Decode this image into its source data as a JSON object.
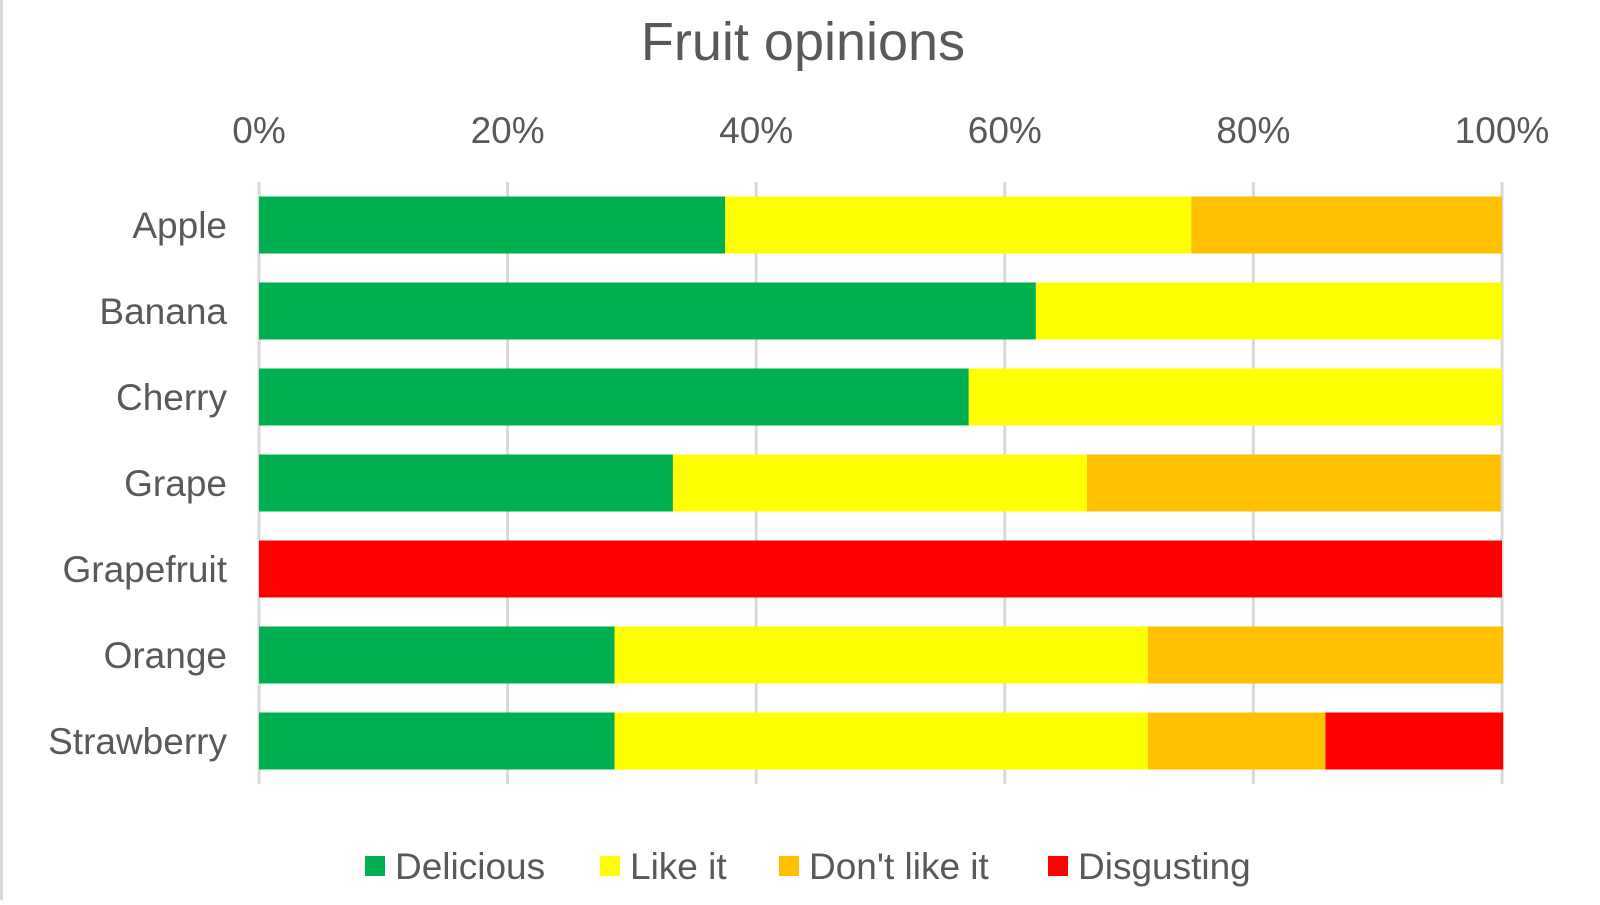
{
  "chart_data": {
    "type": "bar",
    "orientation": "horizontal",
    "stacked": "100%",
    "title": "Fruit opinions",
    "xlabel": "",
    "ylabel": "",
    "xlim": [
      0,
      100
    ],
    "x_ticks": [
      "0%",
      "20%",
      "40%",
      "60%",
      "80%",
      "100%"
    ],
    "x_tick_values": [
      0,
      20,
      40,
      60,
      80,
      100
    ],
    "x_axis_position": "top",
    "grid": true,
    "legend_position": "bottom",
    "categories": [
      "Apple",
      "Banana",
      "Cherry",
      "Grape",
      "Grapefruit",
      "Orange",
      "Strawberry"
    ],
    "series": [
      {
        "name": "Delicious",
        "color": "#00b050",
        "values": [
          37.5,
          62.5,
          57.1,
          33.3,
          0,
          28.6,
          28.6
        ]
      },
      {
        "name": "Like it",
        "color": "#ffff00",
        "values": [
          37.5,
          37.5,
          42.9,
          33.3,
          0,
          42.9,
          42.9
        ]
      },
      {
        "name": "Don't like it",
        "color": "#ffc000",
        "values": [
          25.0,
          0,
          0,
          33.3,
          0,
          28.6,
          14.3
        ]
      },
      {
        "name": "Disgusting",
        "color": "#ff0000",
        "values": [
          0,
          0,
          0,
          0,
          100,
          0,
          14.3
        ]
      }
    ]
  }
}
